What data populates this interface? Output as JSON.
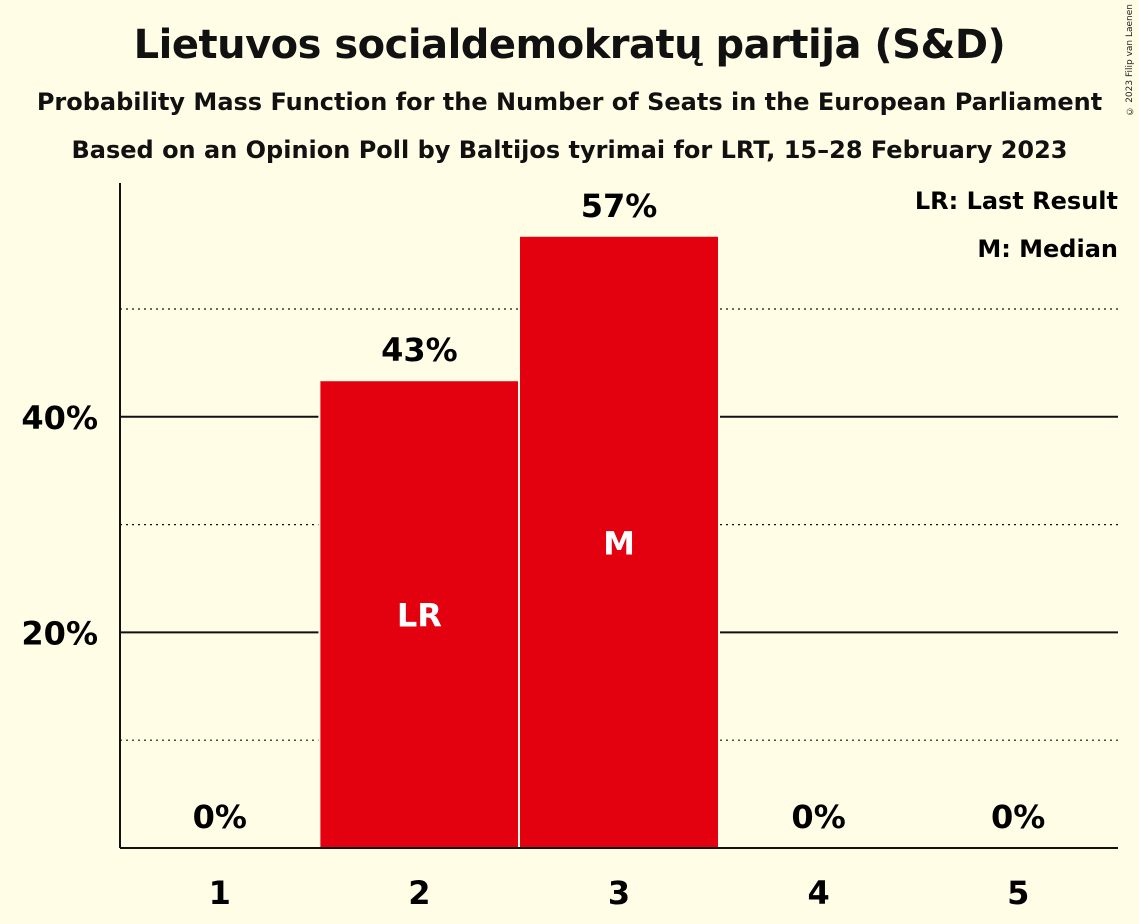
{
  "header": {
    "title": "Lietuvos socialdemokratų partija (S&D)",
    "subtitle": "Probability Mass Function for the Number of Seats in the European Parliament",
    "subtitle2": "Based on an Opinion Poll by Baltijos tyrimai for LRT, 15–28 February 2023"
  },
  "copyright": "© 2023 Filip van Laenen",
  "legend": {
    "lr": "LR: Last Result",
    "m": "M: Median"
  },
  "colors": {
    "bar": "#E3000F",
    "background": "#FFFDE5"
  },
  "chart_data": {
    "type": "bar",
    "categories": [
      "1",
      "2",
      "3",
      "4",
      "5"
    ],
    "values": [
      0,
      43.3,
      56.7,
      0,
      0
    ],
    "value_labels": [
      "0%",
      "43%",
      "57%",
      "0%",
      "0%"
    ],
    "bar_markers": [
      "",
      "LR",
      "M",
      "",
      ""
    ],
    "yticks": [
      20,
      40
    ],
    "ytick_labels": [
      "20%",
      "40%"
    ],
    "minor_gridlines": [
      10,
      30,
      50
    ],
    "ylim": [
      0,
      62
    ],
    "legend_position": "top-right"
  }
}
